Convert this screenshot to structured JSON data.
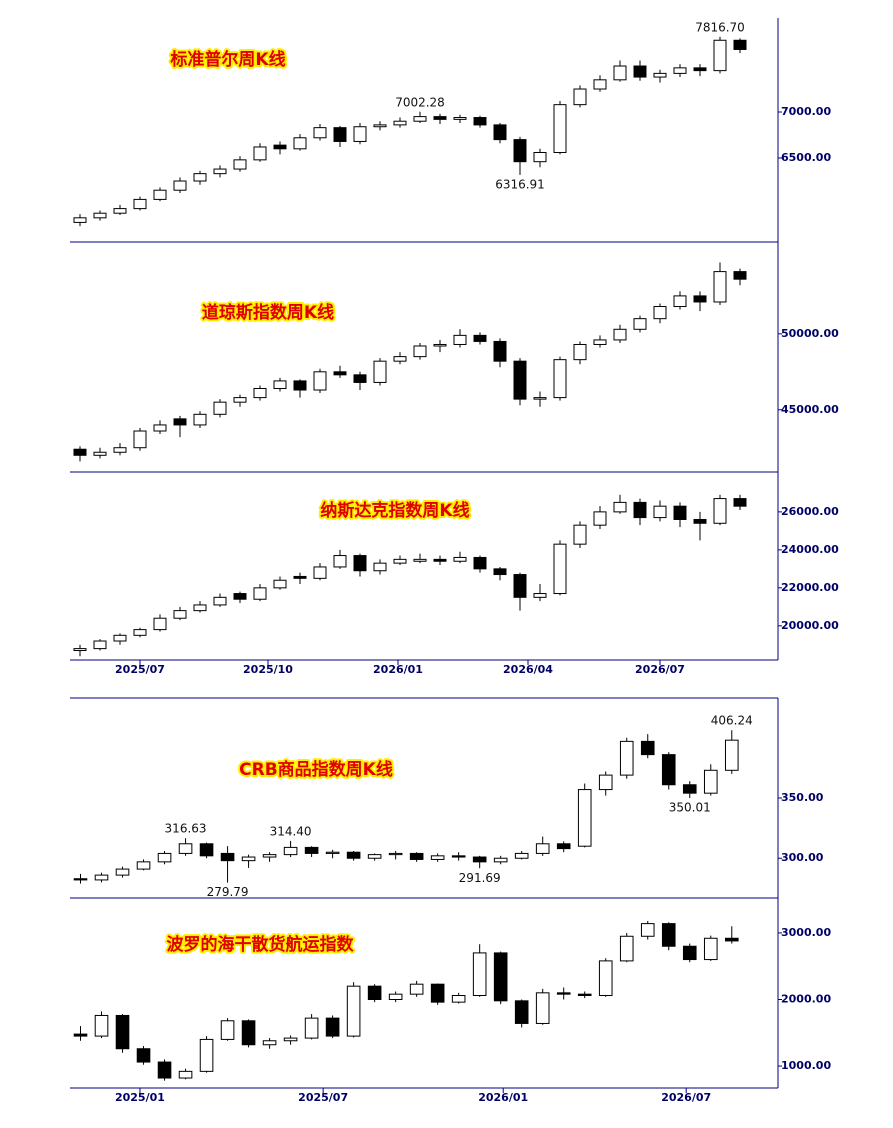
{
  "chart_data": [
    {
      "type": "candlestick",
      "title": "标准普尔周K线",
      "up_color": "#ffffff",
      "down_color": "#000000",
      "ylim": [
        5587,
        8022
      ],
      "yticks": [
        {
          "value": 6500,
          "label": "6500.00"
        },
        {
          "value": 7000,
          "label": "7000.00"
        }
      ],
      "xlim": [
        0,
        35.4
      ],
      "annotations": [
        {
          "value": 7816.7,
          "label": "7816.70"
        },
        {
          "value": 7002.28,
          "label": "7002.28"
        },
        {
          "value": 6316.91,
          "label": "6316.91"
        }
      ],
      "ohlc": [
        [
          5800,
          5890,
          5760,
          5850
        ],
        [
          5850,
          5930,
          5820,
          5900
        ],
        [
          5900,
          5990,
          5880,
          5950
        ],
        [
          5950,
          6080,
          5930,
          6050
        ],
        [
          6050,
          6180,
          6030,
          6150
        ],
        [
          6150,
          6290,
          6120,
          6250
        ],
        [
          6250,
          6360,
          6210,
          6330
        ],
        [
          6330,
          6420,
          6290,
          6380
        ],
        [
          6380,
          6520,
          6350,
          6480
        ],
        [
          6480,
          6660,
          6460,
          6620
        ],
        [
          6640,
          6680,
          6540,
          6600
        ],
        [
          6600,
          6760,
          6580,
          6720
        ],
        [
          6720,
          6870,
          6690,
          6830
        ],
        [
          6830,
          6850,
          6620,
          6680
        ],
        [
          6680,
          6880,
          6650,
          6840
        ],
        [
          6840,
          6900,
          6800,
          6860
        ],
        [
          6860,
          6940,
          6830,
          6900
        ],
        [
          6900,
          7002.28,
          6880,
          6950
        ],
        [
          6950,
          6980,
          6870,
          6920
        ],
        [
          6920,
          6970,
          6880,
          6940
        ],
        [
          6940,
          6960,
          6830,
          6860
        ],
        [
          6860,
          6880,
          6660,
          6700
        ],
        [
          6700,
          6730,
          6316.91,
          6460
        ],
        [
          6460,
          6600,
          6400,
          6560
        ],
        [
          6560,
          7120,
          6540,
          7080
        ],
        [
          7080,
          7290,
          7050,
          7250
        ],
        [
          7250,
          7400,
          7220,
          7350
        ],
        [
          7350,
          7560,
          7330,
          7500
        ],
        [
          7500,
          7560,
          7340,
          7380
        ],
        [
          7380,
          7460,
          7320,
          7420
        ],
        [
          7420,
          7520,
          7380,
          7480
        ],
        [
          7480,
          7520,
          7390,
          7450
        ],
        [
          7450,
          7816.7,
          7420,
          7780
        ],
        [
          7780,
          7800,
          7640,
          7680
        ]
      ]
    },
    {
      "type": "candlestick",
      "title": "道琼斯指数周K线",
      "up_color": "#ffffff",
      "down_color": "#000000",
      "ylim": [
        40900,
        56050
      ],
      "yticks": [
        {
          "value": 45000,
          "label": "45000.00"
        },
        {
          "value": 50000,
          "label": "50000.00"
        }
      ],
      "xlim": [
        0,
        35.4
      ],
      "ohlc": [
        [
          42400,
          42600,
          41600,
          42000
        ],
        [
          42000,
          42500,
          41800,
          42200
        ],
        [
          42200,
          42800,
          42000,
          42500
        ],
        [
          42500,
          43800,
          42300,
          43600
        ],
        [
          43600,
          44300,
          43400,
          44000
        ],
        [
          44400,
          44600,
          43200,
          44000
        ],
        [
          44000,
          44900,
          43800,
          44700
        ],
        [
          44700,
          45700,
          44500,
          45500
        ],
        [
          45500,
          46000,
          45200,
          45800
        ],
        [
          45800,
          46600,
          45600,
          46400
        ],
        [
          46400,
          47100,
          46200,
          46900
        ],
        [
          46900,
          47000,
          45800,
          46300
        ],
        [
          46300,
          47700,
          46100,
          47500
        ],
        [
          47500,
          47900,
          47100,
          47300
        ],
        [
          47300,
          47500,
          46300,
          46800
        ],
        [
          46800,
          48400,
          46600,
          48200
        ],
        [
          48200,
          48800,
          48000,
          48500
        ],
        [
          48500,
          49400,
          48300,
          49200
        ],
        [
          49200,
          49600,
          48800,
          49300
        ],
        [
          49300,
          50300,
          49100,
          49900
        ],
        [
          49900,
          50100,
          49300,
          49500
        ],
        [
          49500,
          49700,
          47800,
          48200
        ],
        [
          48200,
          48400,
          45300,
          45700
        ],
        [
          45700,
          46200,
          45200,
          45800
        ],
        [
          45800,
          48500,
          45600,
          48300
        ],
        [
          48300,
          49500,
          48000,
          49300
        ],
        [
          49300,
          49900,
          49100,
          49600
        ],
        [
          49600,
          50600,
          49400,
          50300
        ],
        [
          50300,
          51200,
          50100,
          51000
        ],
        [
          51000,
          52000,
          50700,
          51800
        ],
        [
          51800,
          52800,
          51600,
          52500
        ],
        [
          52500,
          52800,
          51500,
          52100
        ],
        [
          52100,
          54700,
          51900,
          54100
        ],
        [
          54100,
          54300,
          53200,
          53600
        ]
      ]
    },
    {
      "type": "candlestick",
      "title": "纳斯达克指数周K线",
      "up_color": "#ffffff",
      "down_color": "#000000",
      "ylim": [
        18200,
        28100
      ],
      "yticks": [
        {
          "value": 20000,
          "label": "20000.00"
        },
        {
          "value": 22000,
          "label": "22000.00"
        },
        {
          "value": 24000,
          "label": "24000.00"
        },
        {
          "value": 26000,
          "label": "26000.00"
        }
      ],
      "xlim": [
        0,
        35.4
      ],
      "xticks": [
        {
          "value": 3.5,
          "label": "2025/07"
        },
        {
          "value": 9.9,
          "label": "2025/10"
        },
        {
          "value": 16.4,
          "label": "2026/01"
        },
        {
          "value": 22.9,
          "label": "2026/04"
        },
        {
          "value": 29.5,
          "label": "2026/07"
        }
      ],
      "ohlc": [
        [
          18700,
          19000,
          18400,
          18800
        ],
        [
          18800,
          19300,
          18700,
          19200
        ],
        [
          19200,
          19600,
          19000,
          19500
        ],
        [
          19500,
          19900,
          19400,
          19800
        ],
        [
          19800,
          20600,
          19700,
          20400
        ],
        [
          20400,
          21000,
          20300,
          20800
        ],
        [
          20800,
          21300,
          20700,
          21100
        ],
        [
          21100,
          21700,
          21000,
          21500
        ],
        [
          21700,
          21800,
          21200,
          21400
        ],
        [
          21400,
          22200,
          21300,
          22000
        ],
        [
          22000,
          22600,
          21900,
          22400
        ],
        [
          22600,
          22800,
          22200,
          22500
        ],
        [
          22500,
          23300,
          22400,
          23100
        ],
        [
          23100,
          24000,
          23000,
          23700
        ],
        [
          23700,
          23800,
          22600,
          22900
        ],
        [
          22900,
          23500,
          22700,
          23300
        ],
        [
          23300,
          23700,
          23200,
          23500
        ],
        [
          23400,
          23800,
          23300,
          23500
        ],
        [
          23500,
          23700,
          23200,
          23400
        ],
        [
          23400,
          23900,
          23300,
          23600
        ],
        [
          23600,
          23700,
          22800,
          23000
        ],
        [
          23000,
          23100,
          22400,
          22700
        ],
        [
          22700,
          22800,
          20800,
          21500
        ],
        [
          21500,
          22200,
          21300,
          21700
        ],
        [
          21700,
          24500,
          21600,
          24300
        ],
        [
          24300,
          25500,
          24100,
          25300
        ],
        [
          25300,
          26300,
          25100,
          26000
        ],
        [
          26000,
          26900,
          25900,
          26500
        ],
        [
          26500,
          26700,
          25300,
          25700
        ],
        [
          25700,
          26600,
          25500,
          26300
        ],
        [
          26300,
          26500,
          25200,
          25600
        ],
        [
          25600,
          26000,
          24500,
          25400
        ],
        [
          25400,
          26900,
          25300,
          26700
        ],
        [
          26700,
          26900,
          26100,
          26300
        ]
      ]
    },
    {
      "type": "candlestick",
      "title": "CRB商品指数周K线",
      "up_color": "#ffffff",
      "down_color": "#000000",
      "ylim": [
        267,
        433
      ],
      "yticks": [
        {
          "value": 300,
          "label": "300.00"
        },
        {
          "value": 350,
          "label": "350.00"
        }
      ],
      "xlim": [
        0,
        33.7
      ],
      "annotations": [
        {
          "value": 316.63,
          "label": "316.63"
        },
        {
          "value": 279.79,
          "label": "279.79"
        },
        {
          "value": 314.4,
          "label": "314.40"
        },
        {
          "value": 291.69,
          "label": "291.69"
        },
        {
          "value": 350.01,
          "label": "350.01"
        },
        {
          "value": 406.24,
          "label": "406.24"
        }
      ],
      "ohlc": [
        [
          283,
          287,
          279,
          282
        ],
        [
          282,
          288,
          280,
          286
        ],
        [
          286,
          293,
          284,
          291
        ],
        [
          291,
          299,
          290,
          297
        ],
        [
          297,
          306,
          295,
          304
        ],
        [
          304,
          316.63,
          302,
          312
        ],
        [
          312,
          313,
          300,
          302
        ],
        [
          304,
          310,
          279.79,
          298
        ],
        [
          298,
          303,
          292,
          301
        ],
        [
          301,
          305,
          297,
          303
        ],
        [
          303,
          314.4,
          301,
          309
        ],
        [
          309,
          310,
          301,
          304
        ],
        [
          304,
          307,
          300,
          305
        ],
        [
          305,
          306,
          298,
          300
        ],
        [
          300,
          304,
          298,
          303
        ],
        [
          303,
          306,
          299,
          304
        ],
        [
          304,
          305,
          297,
          299
        ],
        [
          299,
          304,
          297,
          302
        ],
        [
          302,
          305,
          298,
          301
        ],
        [
          301,
          302,
          291.69,
          297
        ],
        [
          297,
          302,
          295,
          300
        ],
        [
          300,
          306,
          299,
          304
        ],
        [
          304,
          318,
          302,
          312
        ],
        [
          312,
          314,
          305,
          308
        ],
        [
          310,
          362,
          309,
          357
        ],
        [
          357,
          372,
          352,
          369
        ],
        [
          369,
          400,
          366,
          397
        ],
        [
          397,
          403,
          383,
          386
        ],
        [
          386,
          388,
          357,
          361
        ],
        [
          361,
          364,
          350.01,
          354
        ],
        [
          354,
          378,
          352,
          373
        ],
        [
          373,
          406.24,
          370,
          398
        ]
      ]
    },
    {
      "type": "candlestick",
      "title": "波罗的海干散货航运指数",
      "up_color": "#ffffff",
      "down_color": "#000000",
      "ylim": [
        670,
        3525
      ],
      "yticks": [
        {
          "value": 1000,
          "label": "1000.00"
        },
        {
          "value": 2000,
          "label": "2000.00"
        },
        {
          "value": 3000,
          "label": "3000.00"
        }
      ],
      "xlim": [
        0,
        33.7
      ],
      "xticks": [
        {
          "value": 3.33,
          "label": "2025/01"
        },
        {
          "value": 12.05,
          "label": "2025/07"
        },
        {
          "value": 20.62,
          "label": "2026/01"
        },
        {
          "value": 29.33,
          "label": "2026/07"
        }
      ],
      "ohlc": [
        [
          1480,
          1600,
          1380,
          1450
        ],
        [
          1450,
          1820,
          1420,
          1760
        ],
        [
          1760,
          1780,
          1200,
          1260
        ],
        [
          1260,
          1300,
          1020,
          1060
        ],
        [
          1060,
          1100,
          780,
          820
        ],
        [
          820,
          960,
          800,
          920
        ],
        [
          920,
          1450,
          900,
          1400
        ],
        [
          1400,
          1720,
          1380,
          1680
        ],
        [
          1680,
          1700,
          1280,
          1320
        ],
        [
          1320,
          1420,
          1260,
          1380
        ],
        [
          1380,
          1460,
          1320,
          1420
        ],
        [
          1420,
          1780,
          1400,
          1720
        ],
        [
          1720,
          1760,
          1420,
          1450
        ],
        [
          1450,
          2260,
          1430,
          2200
        ],
        [
          2200,
          2230,
          1960,
          2000
        ],
        [
          2000,
          2120,
          1960,
          2080
        ],
        [
          2080,
          2280,
          2040,
          2230
        ],
        [
          2230,
          2240,
          1920,
          1960
        ],
        [
          1960,
          2100,
          1940,
          2060
        ],
        [
          2060,
          2830,
          2040,
          2700
        ],
        [
          2700,
          2720,
          1930,
          1980
        ],
        [
          1980,
          2000,
          1580,
          1640
        ],
        [
          1640,
          2160,
          1620,
          2100
        ],
        [
          2100,
          2180,
          2000,
          2080
        ],
        [
          2080,
          2120,
          2020,
          2060
        ],
        [
          2060,
          2620,
          2040,
          2580
        ],
        [
          2580,
          3000,
          2560,
          2950
        ],
        [
          2950,
          3180,
          2900,
          3140
        ],
        [
          3140,
          3160,
          2740,
          2800
        ],
        [
          2800,
          2840,
          2560,
          2600
        ],
        [
          2600,
          2960,
          2580,
          2920
        ],
        [
          2920,
          3100,
          2840,
          2880
        ]
      ]
    }
  ]
}
